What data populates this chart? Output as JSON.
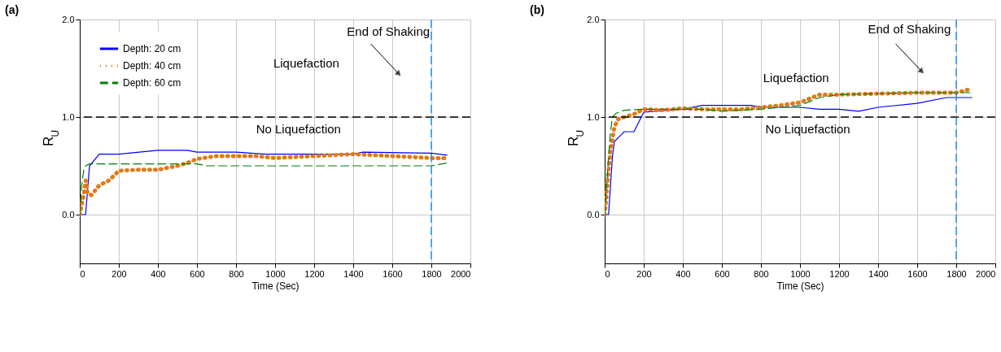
{
  "chart_data": [
    {
      "type": "line",
      "title": "(a)",
      "xlabel": "Time (Sec)",
      "ylabel": "R$_{U}$",
      "xlim": [
        0,
        2000
      ],
      "xticks": [
        0,
        200,
        400,
        600,
        800,
        1000,
        1200,
        1400,
        1600,
        1800,
        2000
      ],
      "ylim": [
        -0.5,
        2.0
      ],
      "yticks": [
        {
          "value": 0,
          "label": "0.0"
        },
        {
          "value": 1,
          "label": "1.0"
        },
        {
          "value": 2,
          "label": "2.0"
        }
      ],
      "grid": true,
      "legend": "top left",
      "series": [
        {
          "name": "Depth: 20 cm",
          "color": "#0000ff",
          "line_style": "solid",
          "x": [
            0,
            30,
            50,
            100,
            200,
            400,
            550,
            600,
            800,
            950,
            1400,
            1450,
            1800,
            1880
          ],
          "values": [
            0,
            0,
            0.5,
            0.62,
            0.62,
            0.66,
            0.66,
            0.64,
            0.64,
            0.62,
            0.62,
            0.64,
            0.63,
            0.61
          ]
        },
        {
          "name": "Depth: 40 cm",
          "color": "#e07b18",
          "line_style": "dotted",
          "x": [
            0,
            10,
            20,
            30,
            40,
            60,
            100,
            150,
            200,
            300,
            400,
            500,
            550,
            600,
            700,
            900,
            1000,
            1200,
            1400,
            1600,
            1800,
            1880
          ],
          "values": [
            0,
            0.1,
            0.2,
            0.35,
            0.22,
            0.2,
            0.3,
            0.35,
            0.45,
            0.46,
            0.46,
            0.5,
            0.53,
            0.57,
            0.6,
            0.6,
            0.58,
            0.6,
            0.62,
            0.6,
            0.58,
            0.58
          ]
        },
        {
          "name": "Depth: 60 cm",
          "color": "#008000",
          "line_style": "dashed",
          "x": [
            0,
            10,
            20,
            30,
            50,
            600,
            650,
            1800,
            1880
          ],
          "values": [
            0,
            0.3,
            0.45,
            0.5,
            0.52,
            0.52,
            0.5,
            0.5,
            0.53
          ]
        }
      ],
      "ref_lines": [
        {
          "axis": "y",
          "value": 1.0,
          "color": "#000000",
          "line_style": "dashed"
        },
        {
          "axis": "x",
          "value": 1800,
          "color": "#1e90ff",
          "line_style": "dashed"
        }
      ],
      "annotations": [
        "Liquefaction",
        "No Liquefaction",
        "End of Shaking"
      ]
    },
    {
      "type": "line",
      "title": "(b)",
      "xlabel": "Time (Sec)",
      "ylabel": "R$_{U}$",
      "xlim": [
        0,
        2000
      ],
      "xticks": [
        0,
        200,
        400,
        600,
        800,
        1000,
        1200,
        1400,
        1600,
        1800,
        2000
      ],
      "ylim": [
        -0.5,
        2.0
      ],
      "yticks": [
        {
          "value": 0,
          "label": "0.0"
        },
        {
          "value": 1,
          "label": "1.0"
        },
        {
          "value": 2,
          "label": "2.0"
        }
      ],
      "grid": true,
      "legend": "top left",
      "series": [
        {
          "name": "Depth: 20 cm",
          "color": "#0000ff",
          "line_style": "solid",
          "x": [
            0,
            20,
            30,
            40,
            50,
            100,
            150,
            200,
            400,
            500,
            750,
            800,
            1000,
            1100,
            1200,
            1300,
            1400,
            1600,
            1750,
            1880
          ],
          "values": [
            0,
            0,
            0.3,
            0.6,
            0.75,
            0.85,
            0.85,
            1.05,
            1.08,
            1.12,
            1.12,
            1.1,
            1.1,
            1.08,
            1.08,
            1.06,
            1.1,
            1.14,
            1.2,
            1.2
          ]
        },
        {
          "name": "Depth: 40 cm",
          "color": "#e07b18",
          "line_style": "dotted",
          "x": [
            0,
            10,
            20,
            30,
            50,
            70,
            100,
            150,
            200,
            300,
            400,
            500,
            600,
            700,
            800,
            900,
            1000,
            1100,
            1200,
            1400,
            1600,
            1800,
            1880
          ],
          "values": [
            0,
            0.2,
            0.45,
            0.65,
            0.9,
            0.98,
            1.0,
            1.03,
            1.08,
            1.07,
            1.09,
            1.08,
            1.08,
            1.08,
            1.1,
            1.12,
            1.15,
            1.23,
            1.23,
            1.24,
            1.25,
            1.25,
            1.29
          ]
        },
        {
          "name": "Depth: 60 cm",
          "color": "#008000",
          "line_style": "dashed",
          "x": [
            0,
            10,
            20,
            30,
            40,
            60,
            100,
            200,
            500,
            600,
            800,
            1000,
            1100,
            1200,
            1600,
            1800,
            1880
          ],
          "values": [
            0,
            0.3,
            0.6,
            0.85,
            1.0,
            1.04,
            1.07,
            1.08,
            1.08,
            1.06,
            1.08,
            1.12,
            1.2,
            1.23,
            1.25,
            1.25,
            1.25
          ]
        }
      ],
      "ref_lines": [
        {
          "axis": "y",
          "value": 1.0,
          "color": "#000000",
          "line_style": "dashed"
        },
        {
          "axis": "x",
          "value": 1800,
          "color": "#1e90ff",
          "line_style": "dashed"
        }
      ],
      "annotations": [
        "Liquefaction",
        "No Liquefaction",
        "End of Shaking"
      ]
    }
  ]
}
